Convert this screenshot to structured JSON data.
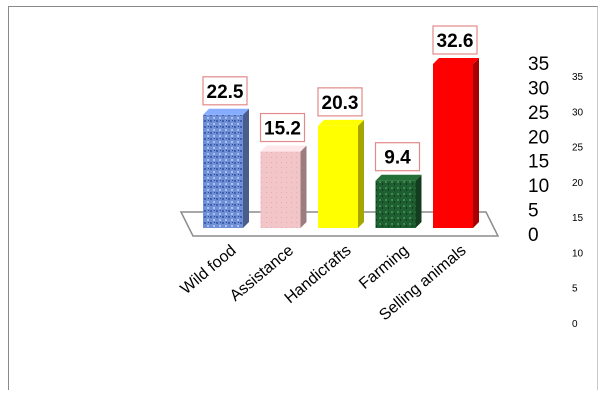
{
  "chart_data": {
    "type": "bar",
    "categories": [
      "Wild food",
      "Assistance",
      "Handicrafts",
      "Farming",
      "Selling animals"
    ],
    "values": [
      22.5,
      15.2,
      20.3,
      9.4,
      32.6
    ],
    "data_labels": [
      "22.5",
      "15.2",
      "20.3",
      "9.4",
      "32.6"
    ],
    "ylim": [
      0,
      35
    ],
    "primary_ticks": [
      "35",
      "30",
      "25",
      "20",
      "15",
      "10",
      "5",
      "0"
    ],
    "secondary_ticks": [
      "35",
      "30",
      "25",
      "20",
      "15",
      "10",
      "5",
      "0"
    ],
    "bar_colors": [
      "#6f8fd6",
      "#efc1c4",
      "#ffff00",
      "#1e5c2e",
      "#ff0000"
    ],
    "grid": false,
    "legend": "none"
  }
}
